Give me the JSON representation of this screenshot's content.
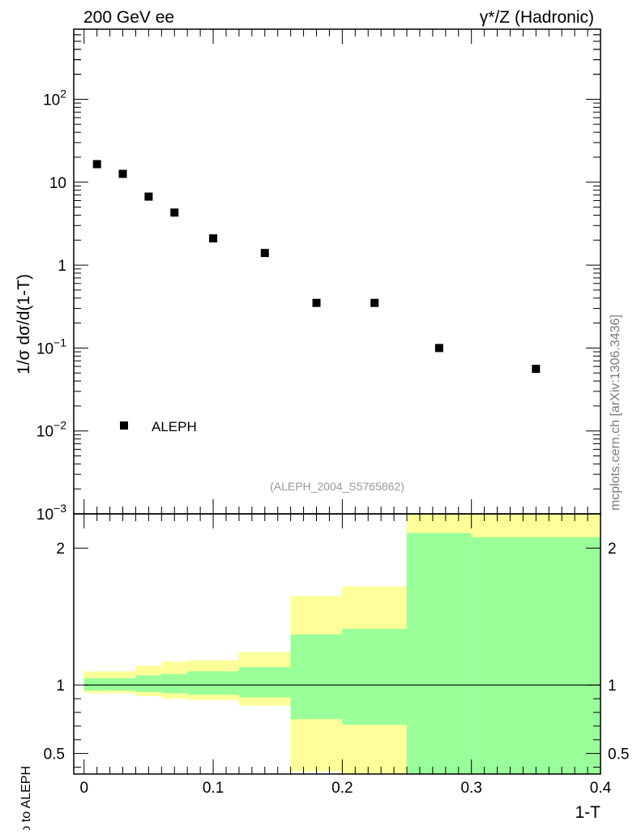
{
  "header": {
    "left_label": "200 GeV ee",
    "right_label": "γ*/Z (Hadronic)"
  },
  "watermark": "mcplots.cern.ch [arXiv:1306.3436]",
  "analysis_id": "(ALEPH_2004_S5765862)",
  "chart_data": [
    {
      "type": "scatter",
      "panel": "main",
      "ylabel": "1/σ  dσ/d(1-T)",
      "yscale": "log",
      "ylim": [
        0.001,
        700
      ],
      "xlim": [
        -0.008,
        0.4
      ],
      "yticks": [
        {
          "value": 0.001,
          "base": "10",
          "exp": "−3"
        },
        {
          "value": 0.01,
          "base": "10",
          "exp": "−2"
        },
        {
          "value": 0.1,
          "base": "10",
          "exp": "−1"
        },
        {
          "value": 1,
          "base": "1",
          "exp": ""
        },
        {
          "value": 10,
          "base": "10",
          "exp": ""
        },
        {
          "value": 100,
          "base": "10",
          "exp": "2"
        }
      ],
      "series": [
        {
          "name": "ALEPH",
          "color": "#000000",
          "x": [
            0.01,
            0.03,
            0.05,
            0.07,
            0.1,
            0.14,
            0.18,
            0.225,
            0.275,
            0.35
          ],
          "y": [
            16.5,
            12.6,
            6.7,
            4.3,
            2.1,
            1.4,
            0.35,
            0.35,
            0.1,
            0.056
          ]
        }
      ],
      "legend": {
        "position": "bottom-left",
        "label": "ALEPH"
      },
      "grid": false
    },
    {
      "type": "area",
      "panel": "ratio",
      "xlabel": "1-T",
      "ylabel": "Ratio to ALEPH",
      "ylim": [
        0.35,
        2.25
      ],
      "xlim": [
        -0.008,
        0.4
      ],
      "xticks": [
        "0",
        "0.1",
        "0.2",
        "0.3",
        "0.4"
      ],
      "yticks": [
        "0.5",
        "1",
        "2"
      ],
      "reference_line": 1,
      "bins": [
        {
          "x0": 0.0,
          "x1": 0.02,
          "green": [
            0.96,
            1.05
          ],
          "yellow": [
            0.94,
            1.1
          ]
        },
        {
          "x0": 0.02,
          "x1": 0.04,
          "green": [
            0.96,
            1.05
          ],
          "yellow": [
            0.94,
            1.1
          ]
        },
        {
          "x0": 0.04,
          "x1": 0.06,
          "green": [
            0.95,
            1.07
          ],
          "yellow": [
            0.92,
            1.14
          ]
        },
        {
          "x0": 0.06,
          "x1": 0.08,
          "green": [
            0.94,
            1.08
          ],
          "yellow": [
            0.9,
            1.17
          ]
        },
        {
          "x0": 0.08,
          "x1": 0.12,
          "green": [
            0.93,
            1.1
          ],
          "yellow": [
            0.89,
            1.18
          ]
        },
        {
          "x0": 0.12,
          "x1": 0.16,
          "green": [
            0.91,
            1.13
          ],
          "yellow": [
            0.85,
            1.24
          ]
        },
        {
          "x0": 0.16,
          "x1": 0.2,
          "green": [
            0.75,
            1.37
          ],
          "yellow": [
            0.37,
            1.65
          ]
        },
        {
          "x0": 0.2,
          "x1": 0.25,
          "green": [
            0.71,
            1.41
          ],
          "yellow": [
            0.35,
            1.72
          ]
        },
        {
          "x0": 0.25,
          "x1": 0.3,
          "green": [
            0.35,
            2.11
          ],
          "yellow": [
            0.35,
            2.3
          ]
        },
        {
          "x0": 0.3,
          "x1": 0.4,
          "green": [
            0.35,
            2.08
          ],
          "yellow": [
            0.35,
            2.3
          ]
        }
      ],
      "colors": {
        "green": "#99ff99",
        "yellow": "#ffff99"
      },
      "grid": false
    }
  ]
}
